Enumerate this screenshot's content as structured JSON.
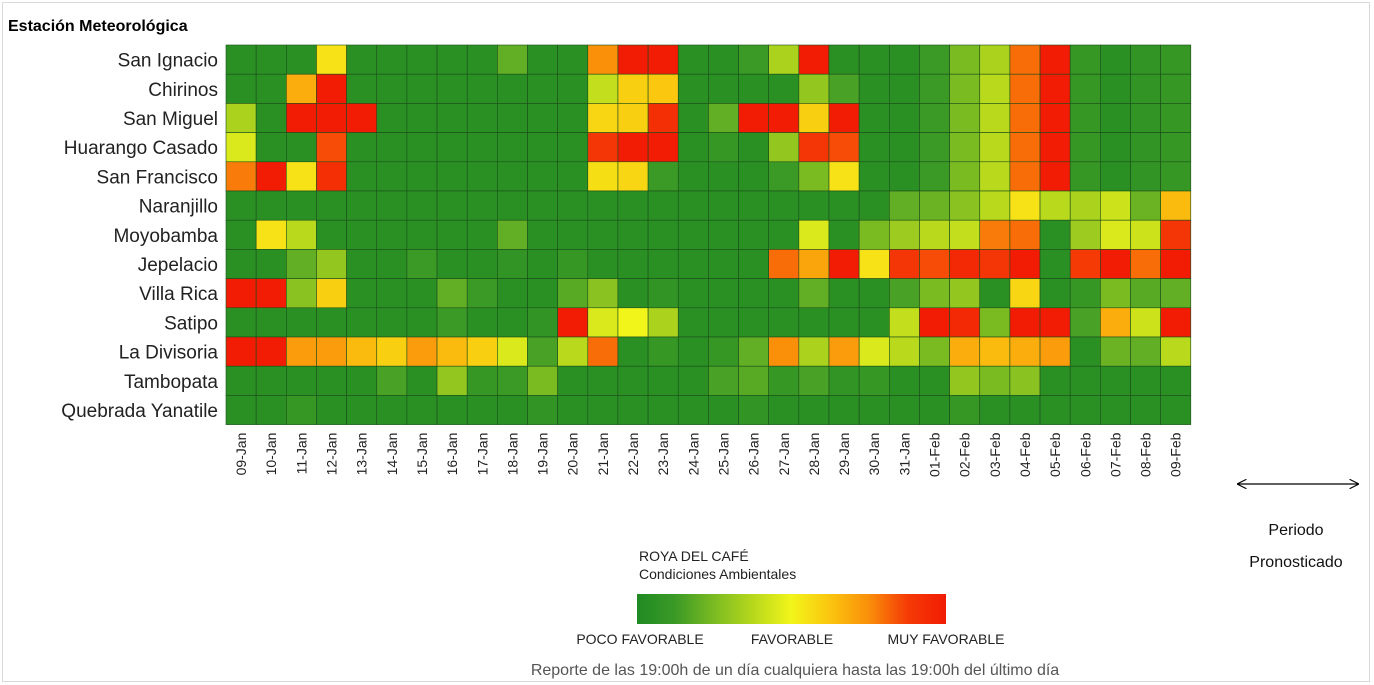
{
  "chart_data": {
    "type": "heatmap",
    "title": "Estación Meteorológica",
    "rows": [
      "San Ignacio",
      "Chirinos",
      "San Miguel",
      "Huarango Casado",
      "San Francisco",
      "Naranjillo",
      "Moyobamba",
      "Jepelacio",
      "Villa Rica",
      "Satipo",
      "La Divisoria",
      "Tambopata",
      "Quebrada Yanatile"
    ],
    "columns": [
      "09-Jan",
      "10-Jan",
      "11-Jan",
      "12-Jan",
      "13-Jan",
      "14-Jan",
      "15-Jan",
      "16-Jan",
      "17-Jan",
      "18-Jan",
      "19-Jan",
      "20-Jan",
      "21-Jan",
      "22-Jan",
      "23-Jan",
      "24-Jan",
      "25-Jan",
      "26-Jan",
      "27-Jan",
      "28-Jan",
      "29-Jan",
      "30-Jan",
      "31-Jan",
      "01-Feb",
      "02-Feb",
      "03-Feb",
      "04-Feb",
      "05-Feb",
      "06-Feb",
      "07-Feb",
      "08-Feb",
      "09-Feb"
    ],
    "value_scale": "0 = poco favorable, 0.5 = favorable, 1 = muy favorable",
    "values": [
      [
        0.05,
        0.05,
        0.05,
        0.55,
        0.05,
        0.05,
        0.05,
        0.05,
        0.05,
        0.2,
        0.05,
        0.05,
        0.75,
        1.0,
        1.0,
        0.05,
        0.05,
        0.12,
        0.35,
        1.0,
        0.05,
        0.05,
        0.05,
        0.12,
        0.25,
        0.35,
        0.8,
        1.0,
        0.1,
        0.05,
        0.08,
        0.1
      ],
      [
        0.05,
        0.05,
        0.68,
        1.0,
        0.05,
        0.05,
        0.05,
        0.05,
        0.05,
        0.05,
        0.05,
        0.05,
        0.4,
        0.6,
        0.62,
        0.05,
        0.05,
        0.05,
        0.05,
        0.3,
        0.15,
        0.05,
        0.05,
        0.12,
        0.25,
        0.38,
        0.8,
        1.0,
        0.1,
        0.05,
        0.08,
        0.1
      ],
      [
        0.35,
        0.05,
        1.0,
        1.0,
        1.0,
        0.05,
        0.05,
        0.05,
        0.05,
        0.05,
        0.05,
        0.05,
        0.58,
        0.6,
        0.92,
        0.05,
        0.2,
        1.0,
        1.0,
        0.6,
        1.0,
        0.05,
        0.05,
        0.12,
        0.25,
        0.38,
        0.8,
        1.0,
        0.1,
        0.05,
        0.08,
        0.1
      ],
      [
        0.45,
        0.05,
        0.05,
        0.85,
        0.05,
        0.05,
        0.05,
        0.05,
        0.05,
        0.05,
        0.05,
        0.05,
        0.9,
        1.0,
        1.0,
        0.05,
        0.1,
        0.05,
        0.3,
        0.9,
        0.85,
        0.05,
        0.05,
        0.12,
        0.25,
        0.38,
        0.8,
        1.0,
        0.1,
        0.05,
        0.08,
        0.1
      ],
      [
        0.78,
        1.0,
        0.55,
        0.92,
        0.05,
        0.05,
        0.05,
        0.05,
        0.05,
        0.05,
        0.05,
        0.05,
        0.56,
        0.58,
        0.12,
        0.05,
        0.05,
        0.05,
        0.12,
        0.25,
        0.55,
        0.05,
        0.05,
        0.12,
        0.25,
        0.38,
        0.8,
        1.0,
        0.1,
        0.05,
        0.08,
        0.1
      ],
      [
        0.05,
        0.05,
        0.05,
        0.05,
        0.05,
        0.05,
        0.05,
        0.05,
        0.05,
        0.05,
        0.05,
        0.05,
        0.05,
        0.05,
        0.05,
        0.05,
        0.05,
        0.05,
        0.05,
        0.05,
        0.05,
        0.05,
        0.2,
        0.22,
        0.28,
        0.38,
        0.55,
        0.38,
        0.35,
        0.42,
        0.22,
        0.65
      ],
      [
        0.05,
        0.55,
        0.38,
        0.05,
        0.05,
        0.05,
        0.05,
        0.05,
        0.05,
        0.2,
        0.05,
        0.05,
        0.05,
        0.05,
        0.05,
        0.05,
        0.05,
        0.05,
        0.05,
        0.45,
        0.05,
        0.25,
        0.32,
        0.38,
        0.4,
        0.78,
        0.8,
        0.05,
        0.32,
        0.45,
        0.42,
        0.9
      ],
      [
        0.05,
        0.05,
        0.2,
        0.3,
        0.05,
        0.05,
        0.12,
        0.05,
        0.05,
        0.08,
        0.05,
        0.1,
        0.05,
        0.05,
        0.05,
        0.05,
        0.05,
        0.05,
        0.8,
        0.7,
        1.0,
        0.55,
        0.9,
        0.85,
        0.95,
        0.9,
        1.0,
        0.05,
        0.88,
        1.0,
        0.8,
        1.0
      ],
      [
        1.0,
        1.0,
        0.28,
        0.6,
        0.05,
        0.05,
        0.05,
        0.2,
        0.12,
        0.05,
        0.05,
        0.18,
        0.28,
        0.05,
        0.08,
        0.05,
        0.05,
        0.05,
        0.05,
        0.2,
        0.05,
        0.05,
        0.15,
        0.25,
        0.3,
        0.05,
        0.58,
        0.05,
        0.1,
        0.25,
        0.18,
        0.2
      ],
      [
        0.05,
        0.05,
        0.05,
        0.05,
        0.05,
        0.05,
        0.05,
        0.12,
        0.05,
        0.05,
        0.08,
        1.0,
        0.45,
        0.5,
        0.35,
        0.05,
        0.05,
        0.05,
        0.05,
        0.05,
        0.05,
        0.05,
        0.4,
        1.0,
        0.95,
        0.25,
        1.0,
        1.0,
        0.15,
        0.68,
        0.42,
        1.0
      ],
      [
        1.0,
        1.0,
        0.72,
        0.72,
        0.65,
        0.6,
        0.72,
        0.65,
        0.6,
        0.45,
        0.15,
        0.38,
        0.8,
        0.05,
        0.1,
        0.05,
        0.1,
        0.2,
        0.75,
        0.35,
        0.72,
        0.45,
        0.38,
        0.25,
        0.68,
        0.65,
        0.68,
        0.72,
        0.05,
        0.22,
        0.2,
        0.38
      ],
      [
        0.05,
        0.05,
        0.05,
        0.05,
        0.05,
        0.15,
        0.05,
        0.3,
        0.1,
        0.12,
        0.25,
        0.05,
        0.05,
        0.05,
        0.05,
        0.05,
        0.15,
        0.18,
        0.1,
        0.15,
        0.08,
        0.1,
        0.05,
        0.05,
        0.3,
        0.25,
        0.28,
        0.05,
        0.05,
        0.05,
        0.05,
        0.05
      ],
      [
        0.05,
        0.05,
        0.1,
        0.05,
        0.05,
        0.05,
        0.05,
        0.05,
        0.05,
        0.05,
        0.08,
        0.05,
        0.05,
        0.05,
        0.05,
        0.05,
        0.05,
        0.08,
        0.05,
        0.05,
        0.05,
        0.05,
        0.05,
        0.05,
        0.1,
        0.05,
        0.05,
        0.05,
        0.05,
        0.05,
        0.05,
        0.05
      ]
    ],
    "colorscale": [
      "#1f8a23",
      "#3c9a26",
      "#7bbb22",
      "#b7d81c",
      "#f2f51a",
      "#fbc50f",
      "#fa8f0a",
      "#f53b06",
      "#f21b04"
    ],
    "legend": {
      "title_line1": "ROYA DEL CAFÉ",
      "title_line2": "Condiciones Ambientales",
      "labels": [
        "POCO FAVORABLE",
        "FAVORABLE",
        "MUY FAVORABLE"
      ]
    },
    "forecast": {
      "line1": "Periodo",
      "line2": "Pronosticado",
      "start_column": "06-Feb",
      "end_column": "09-Feb"
    },
    "footer": "Reporte de las 19:00h de un día cualquiera hasta las 19:00h del último día"
  }
}
